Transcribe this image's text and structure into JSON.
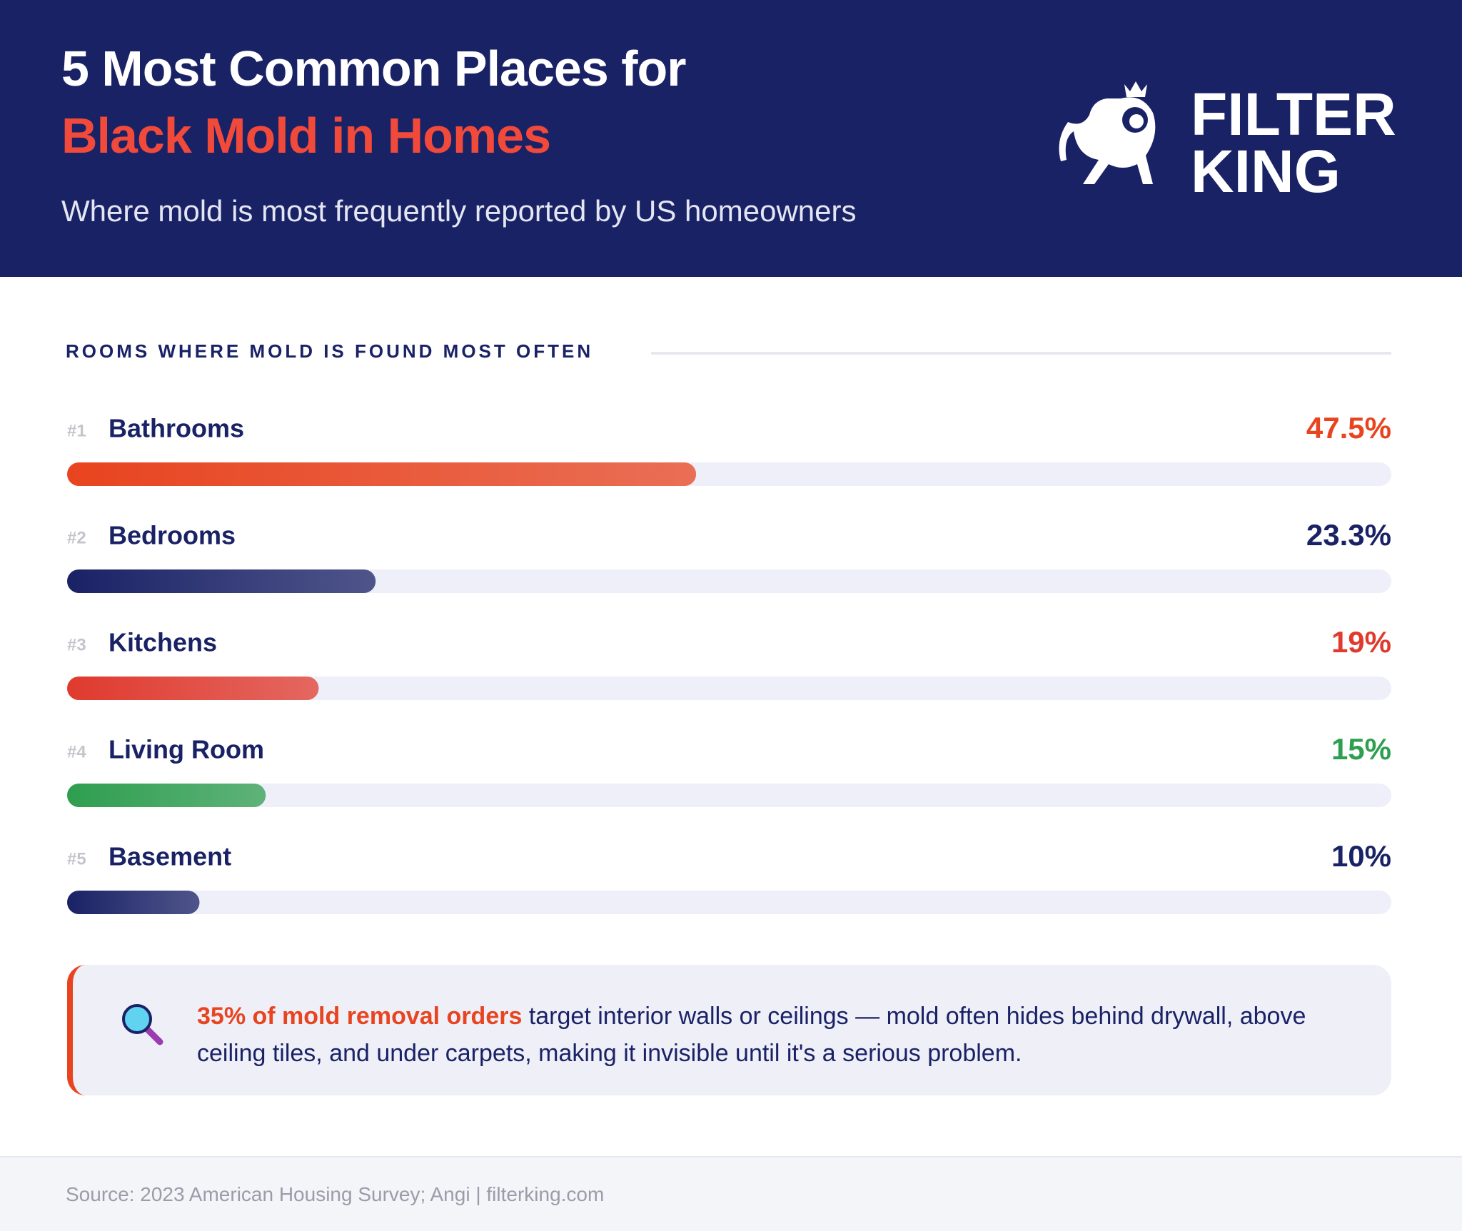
{
  "header": {
    "title": "5 Most Common Places for",
    "title_highlight": "Black Mold in Homes",
    "subtitle": "Where mold is most frequently reported by US homeowners",
    "logo_top": "FILTER",
    "logo_bottom": "KING"
  },
  "chart_data": {
    "type": "hbar",
    "title": "ROOMS WHERE MOLD IS FOUND MOST OFTEN",
    "ranks": [
      "#1",
      "#2",
      "#3",
      "#4",
      "#5"
    ],
    "categories": [
      "Bathrooms",
      "Bedrooms",
      "Kitchens",
      "Living Room",
      "Basement"
    ],
    "values": [
      47.5,
      23.3,
      19,
      15,
      10
    ],
    "value_labels": [
      "47.5%",
      "23.3%",
      "19%",
      "15%",
      "10%"
    ],
    "colors": [
      "#e8441f",
      "#1a2266",
      "#e03a2e",
      "#2e9e4f",
      "#1a2266"
    ],
    "xlim": [
      0,
      100
    ]
  },
  "callout": {
    "highlight": "35% of mold removal orders",
    "text": "target interior walls or ceilings — mold often hides behind drywall, above ceiling tiles, and under carpets, making it invisible until it's a serious problem."
  },
  "footer": {
    "source": "Source: 2023 American Housing Survey; Angi | filterking.com"
  }
}
